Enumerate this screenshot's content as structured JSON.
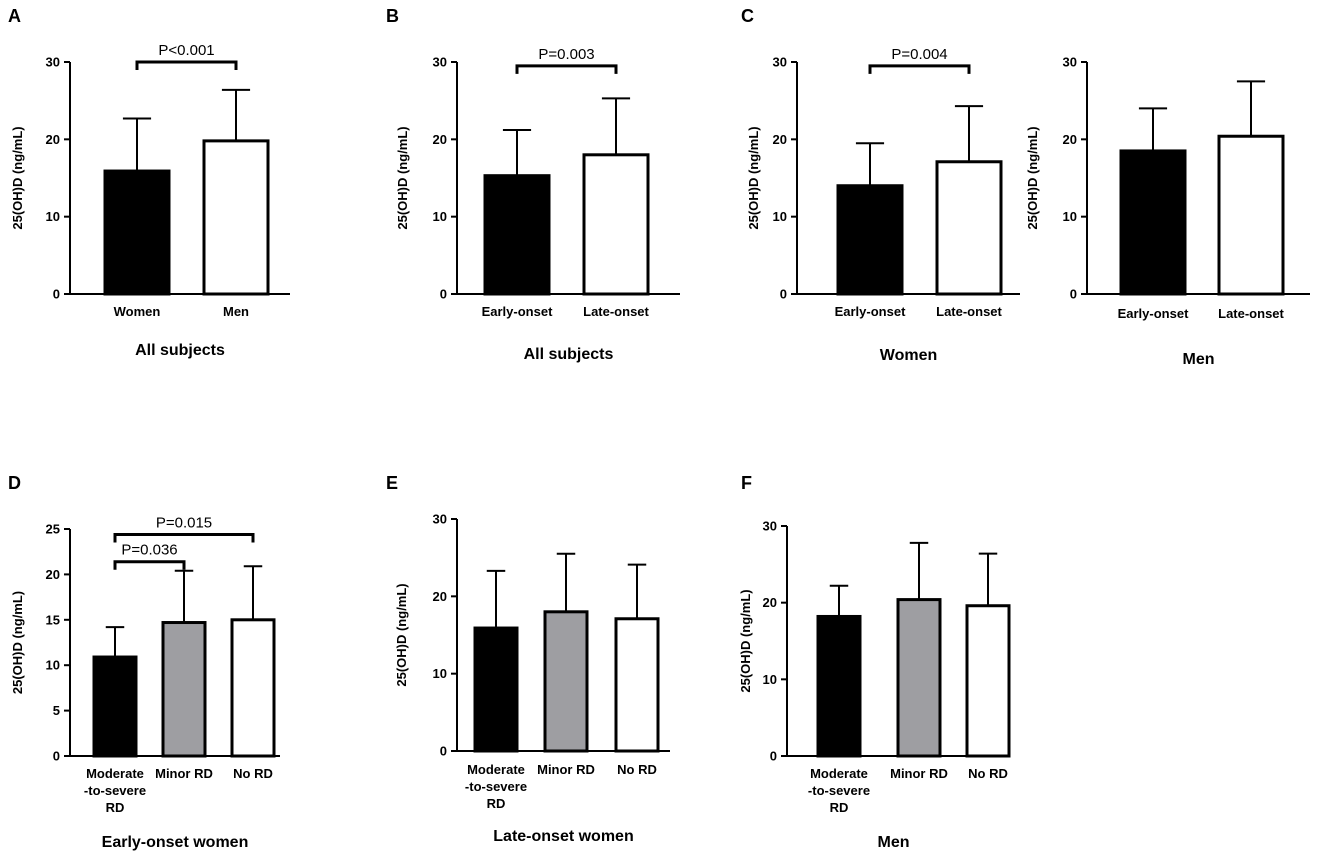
{
  "colors": {
    "black": "#000000",
    "gray": "#9e9ea2",
    "white": "#ffffff"
  },
  "chart_data": [
    {
      "type": "bar",
      "panel": "A",
      "title": "All subjects",
      "ylabel": "25(OH)D (ng/mL)",
      "ylim": [
        0,
        30
      ],
      "yticks": [
        0,
        10,
        20,
        30
      ],
      "categories": [
        [
          "Women"
        ],
        [
          "Men"
        ]
      ],
      "values": [
        15.9,
        19.8
      ],
      "errors": [
        22.7,
        26.4
      ],
      "fills": [
        "black",
        "white"
      ],
      "comparisons": [
        {
          "from": 0,
          "to": 1,
          "label": "P<0.001",
          "y": 30
        }
      ]
    },
    {
      "type": "bar",
      "panel": "B",
      "title": "All subjects",
      "ylabel": "25(OH)D (ng/mL)",
      "ylim": [
        0,
        30
      ],
      "yticks": [
        0,
        10,
        20,
        30
      ],
      "categories": [
        [
          "Early-onset"
        ],
        [
          "Late-onset"
        ]
      ],
      "values": [
        15.3,
        18.0
      ],
      "errors": [
        21.2,
        25.3
      ],
      "fills": [
        "black",
        "white"
      ],
      "comparisons": [
        {
          "from": 0,
          "to": 1,
          "label": "P=0.003",
          "y": 29.5
        }
      ]
    },
    {
      "type": "bar",
      "panel": "C",
      "title": "Women",
      "ylabel": "25(OH)D (ng/mL)",
      "ylim": [
        0,
        30
      ],
      "yticks": [
        0,
        10,
        20,
        30
      ],
      "categories": [
        [
          "Early-onset"
        ],
        [
          "Late-onset"
        ]
      ],
      "values": [
        14.0,
        17.1
      ],
      "errors": [
        19.5,
        24.3
      ],
      "fills": [
        "black",
        "white"
      ],
      "comparisons": [
        {
          "from": 0,
          "to": 1,
          "label": "P=0.004",
          "y": 29.5
        }
      ]
    },
    {
      "type": "bar",
      "panel": "",
      "title": "Men",
      "ylabel": "25(OH)D (ng/mL)",
      "ylim": [
        0,
        30
      ],
      "yticks": [
        0,
        10,
        20,
        30
      ],
      "categories": [
        [
          "Early-onset"
        ],
        [
          "Late-onset"
        ]
      ],
      "values": [
        18.5,
        20.4
      ],
      "errors": [
        24.0,
        27.5
      ],
      "fills": [
        "black",
        "white"
      ],
      "comparisons": []
    },
    {
      "type": "bar",
      "panel": "D",
      "title": "Early-onset women",
      "ylabel": "25(OH)D (ng/mL)",
      "ylim": [
        0,
        25
      ],
      "yticks": [
        0,
        5,
        10,
        15,
        20,
        25
      ],
      "categories": [
        [
          "Moderate",
          "-to-severe",
          "RD"
        ],
        [
          "Minor RD"
        ],
        [
          "No RD"
        ]
      ],
      "values": [
        10.9,
        14.7,
        15.0
      ],
      "errors": [
        14.2,
        20.4,
        20.9
      ],
      "fills": [
        "black",
        "gray",
        "white"
      ],
      "comparisons": [
        {
          "from": 0,
          "to": 2,
          "label": "P=0.015",
          "y": 24.4
        },
        {
          "from": 0,
          "to": 1,
          "label": "P=0.036",
          "y": 21.4
        }
      ]
    },
    {
      "type": "bar",
      "panel": "E",
      "title": "Late-onset women",
      "ylabel": "25(OH)D (ng/mL)",
      "ylim": [
        0,
        30
      ],
      "yticks": [
        0,
        10,
        20,
        30
      ],
      "categories": [
        [
          "Moderate",
          "-to-severe",
          "RD"
        ],
        [
          "Minor RD"
        ],
        [
          "No RD"
        ]
      ],
      "values": [
        15.9,
        18.0,
        17.1
      ],
      "errors": [
        23.3,
        25.5,
        24.1
      ],
      "fills": [
        "black",
        "gray",
        "white"
      ],
      "comparisons": []
    },
    {
      "type": "bar",
      "panel": "F",
      "title": "Men",
      "ylabel": "25(OH)D (ng/mL)",
      "ylim": [
        0,
        30
      ],
      "yticks": [
        0,
        10,
        20,
        30
      ],
      "categories": [
        [
          "Moderate",
          "-to-severe",
          "RD"
        ],
        [
          "Minor RD"
        ],
        [
          "No RD"
        ]
      ],
      "values": [
        18.2,
        20.4,
        19.6
      ],
      "errors": [
        22.2,
        27.8,
        26.4
      ],
      "fills": [
        "black",
        "gray",
        "white"
      ],
      "comparisons": []
    }
  ]
}
